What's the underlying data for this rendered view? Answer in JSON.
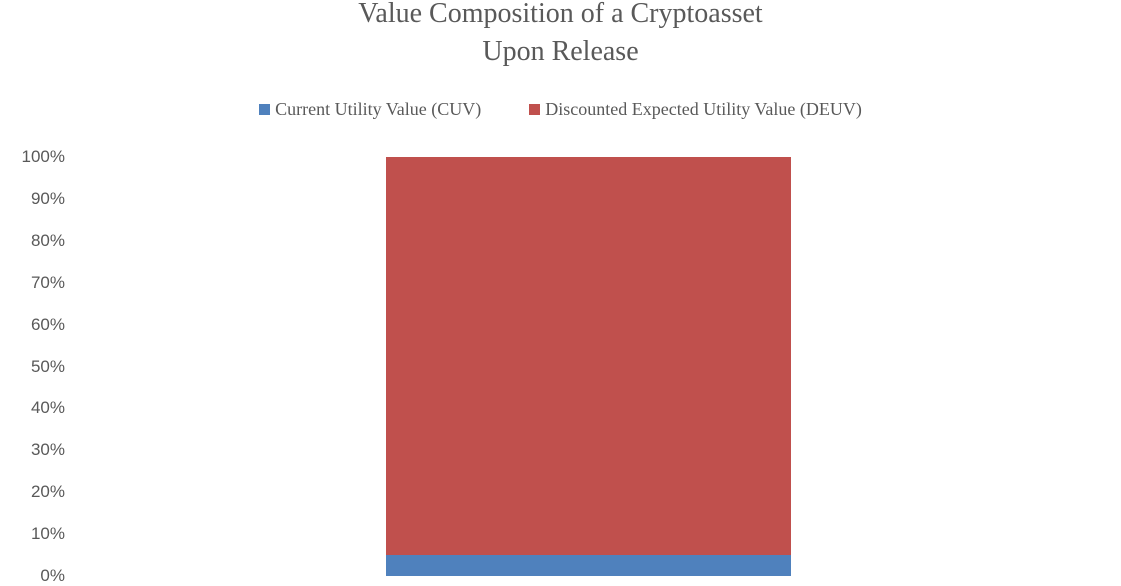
{
  "chart_title": {
    "line1": "Value Composition of a Cryptoasset",
    "line2": "Upon Release"
  },
  "chart_data": {
    "type": "bar",
    "subtype": "100%-stacked-column",
    "title": "Value Composition of a Cryptoasset Upon Release",
    "categories": [
      ""
    ],
    "series": [
      {
        "name": "Current Utility Value (CUV)",
        "values": [
          5
        ],
        "color": "#4F81BD"
      },
      {
        "name": "Discounted Expected Utility Value (DEUV)",
        "values": [
          95
        ],
        "color": "#C0504D"
      }
    ],
    "xlabel": "",
    "ylabel": "",
    "ylim": [
      0,
      100
    ],
    "y_tick_labels": [
      "100%",
      "90%",
      "80%",
      "70%",
      "60%",
      "50%",
      "40%",
      "30%",
      "20%",
      "10%",
      "0%"
    ],
    "grid": false,
    "legend_position": "top",
    "title_color": "#595959",
    "axis_text_color": "#595959",
    "background_color": "#FFFFFF"
  }
}
